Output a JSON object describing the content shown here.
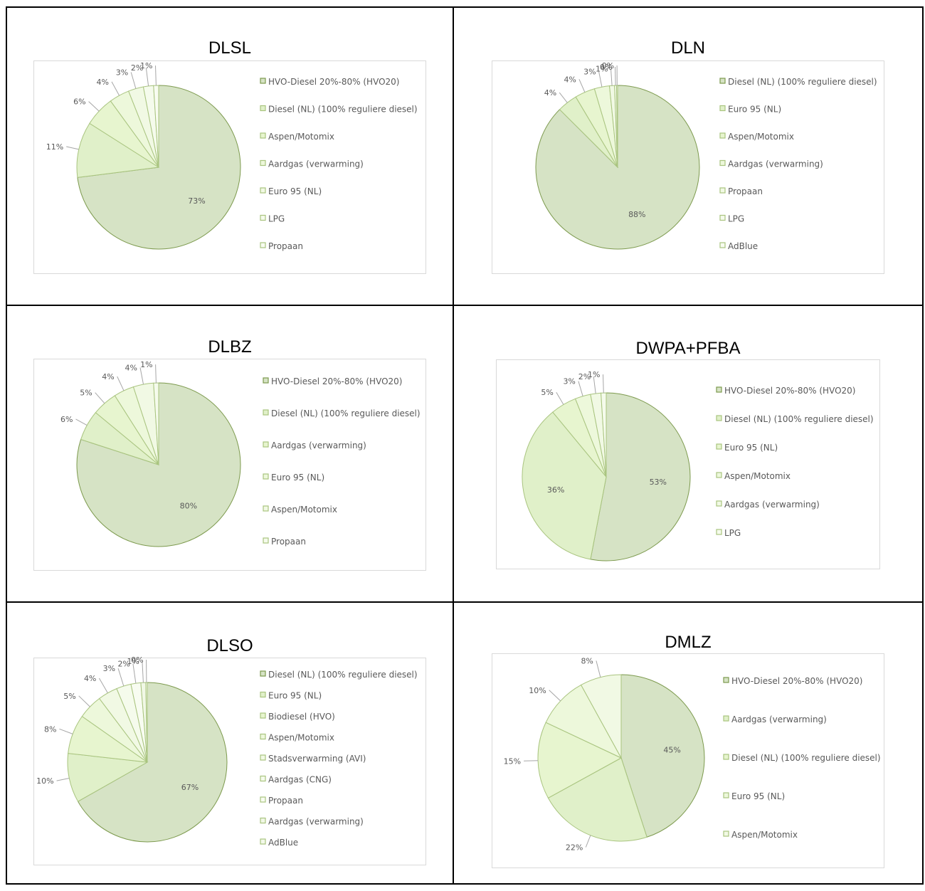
{
  "colors": {
    "palette": [
      "#d6e3c5",
      "#e0f0c9",
      "#e7f5cf",
      "#edf8db",
      "#f1f9e4",
      "#f5fbec",
      "#f8fcf1",
      "#f1f8e6",
      "#f3f9ea"
    ],
    "dark_stroke": "#7d9a4e",
    "light_stroke": "#a9c47f"
  },
  "chart_data": [
    {
      "type": "pie",
      "title": "DLSL",
      "slices": [
        {
          "name": "HVO-Diesel 20%-80% (HVO20)",
          "value": 73,
          "label": "73%"
        },
        {
          "name": "Diesel (NL) (100% reguliere diesel)",
          "value": 11,
          "label": "11%"
        },
        {
          "name": "Aspen/Motomix",
          "value": 6,
          "label": "6%"
        },
        {
          "name": "Aardgas (verwarming)",
          "value": 4,
          "label": "4%"
        },
        {
          "name": "Euro 95 (NL)",
          "value": 3,
          "label": "3%"
        },
        {
          "name": "LPG",
          "value": 2,
          "label": "2%"
        },
        {
          "name": "Propaan",
          "value": 1,
          "label": "1%"
        }
      ]
    },
    {
      "type": "pie",
      "title": "DLN",
      "slices": [
        {
          "name": "Diesel (NL) (100% reguliere diesel)",
          "value": 88,
          "label": "88%"
        },
        {
          "name": "Euro 95 (NL)",
          "value": 4,
          "label": "4%"
        },
        {
          "name": "Aspen/Motomix",
          "value": 4,
          "label": "4%"
        },
        {
          "name": "Aardgas (verwarming)",
          "value": 3,
          "label": "3%"
        },
        {
          "name": "Propaan",
          "value": 1,
          "label": "1%"
        },
        {
          "name": "LPG",
          "value": 0.4,
          "label": "0%"
        },
        {
          "name": "AdBlue",
          "value": 0.2,
          "label": "0%"
        }
      ]
    },
    {
      "type": "pie",
      "title": "DLBZ",
      "slices": [
        {
          "name": "HVO-Diesel 20%-80% (HVO20)",
          "value": 80,
          "label": "80%"
        },
        {
          "name": "Diesel (NL) (100% reguliere diesel)",
          "value": 6,
          "label": "6%"
        },
        {
          "name": "Aardgas (verwarming)",
          "value": 5,
          "label": "5%"
        },
        {
          "name": "Euro 95 (NL)",
          "value": 4,
          "label": "4%"
        },
        {
          "name": "Aspen/Motomix",
          "value": 4,
          "label": "4%"
        },
        {
          "name": "Propaan",
          "value": 1,
          "label": "1%"
        }
      ]
    },
    {
      "type": "pie",
      "title": "DWPA+PFBA",
      "slices": [
        {
          "name": "HVO-Diesel 20%-80% (HVO20)",
          "value": 53,
          "label": "53%"
        },
        {
          "name": "Diesel (NL) (100% reguliere diesel)",
          "value": 36,
          "label": "36%"
        },
        {
          "name": "Euro 95 (NL)",
          "value": 5,
          "label": "5%"
        },
        {
          "name": "Aspen/Motomix",
          "value": 3,
          "label": "3%"
        },
        {
          "name": "Aardgas (verwarming)",
          "value": 2,
          "label": "2%"
        },
        {
          "name": "LPG",
          "value": 1,
          "label": "1%"
        }
      ]
    },
    {
      "type": "pie",
      "title": "DLSO",
      "slices": [
        {
          "name": "Diesel (NL) (100% reguliere diesel)",
          "value": 67,
          "label": "67%"
        },
        {
          "name": "Euro 95 (NL)",
          "value": 10,
          "label": "10%"
        },
        {
          "name": "Biodiesel (HVO)",
          "value": 8,
          "label": "8%"
        },
        {
          "name": "Aspen/Motomix",
          "value": 5,
          "label": "5%"
        },
        {
          "name": "Stadsverwarming (AVI)",
          "value": 4,
          "label": "4%"
        },
        {
          "name": "Aardgas (CNG)",
          "value": 3,
          "label": "3%"
        },
        {
          "name": "Propaan",
          "value": 2,
          "label": "2%"
        },
        {
          "name": "Aardgas (verwarming)",
          "value": 1,
          "label": "1%"
        },
        {
          "name": "AdBlue",
          "value": 0.3,
          "label": "0%"
        }
      ]
    },
    {
      "type": "pie",
      "title": "DMLZ",
      "slices": [
        {
          "name": "HVO-Diesel 20%-80% (HVO20)",
          "value": 45,
          "label": "45%"
        },
        {
          "name": "Aardgas (verwarming)",
          "value": 22,
          "label": "22%"
        },
        {
          "name": "Diesel (NL) (100% reguliere diesel)",
          "value": 15,
          "label": "15%"
        },
        {
          "name": "Euro 95 (NL)",
          "value": 10,
          "label": "10%"
        },
        {
          "name": "Aspen/Motomix",
          "value": 8,
          "label": "8%"
        }
      ]
    }
  ]
}
